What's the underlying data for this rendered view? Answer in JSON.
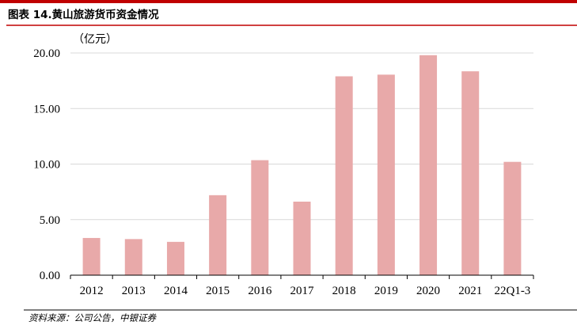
{
  "header": {
    "title": "图表 14.黄山旅游货币资金情况"
  },
  "footer": {
    "source": "资料来源：公司公告，中银证券"
  },
  "colors": {
    "accent": "#c00000",
    "bar": "#e8a9a9",
    "rule": "#000000"
  },
  "chart_data": {
    "type": "bar",
    "title": "",
    "xlabel": "",
    "ylabel": "",
    "unit_label": "（亿元）",
    "categories": [
      "2012",
      "2013",
      "2014",
      "2015",
      "2016",
      "2017",
      "2018",
      "2019",
      "2020",
      "2021",
      "22Q1-3"
    ],
    "values": [
      3.35,
      3.25,
      3.0,
      7.2,
      10.35,
      6.62,
      17.9,
      18.05,
      19.8,
      18.35,
      10.2
    ],
    "ylim": [
      0,
      20
    ],
    "yticks": [
      "0.00",
      "5.00",
      "10.00",
      "15.00",
      "20.00"
    ],
    "ytick_values": [
      0,
      5,
      10,
      15,
      20
    ],
    "grid": true,
    "legend": "none"
  }
}
